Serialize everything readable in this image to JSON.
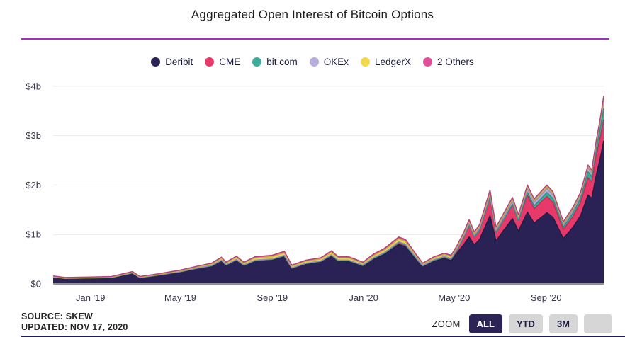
{
  "title": "Aggregated Open Interest of Bitcoin Options",
  "accent_divider_color": "#a62cc6",
  "chart_data": {
    "type": "area",
    "stacked": true,
    "unit": "USD billions",
    "x": [
      "2018-11-12",
      "2018-11-28",
      "2019-01-01",
      "2019-01-29",
      "2019-02-26",
      "2019-03-08",
      "2019-03-31",
      "2019-05-01",
      "2019-05-24",
      "2019-06-12",
      "2019-06-25",
      "2019-07-01",
      "2019-07-15",
      "2019-07-25",
      "2019-08-09",
      "2019-09-01",
      "2019-09-17",
      "2019-09-27",
      "2019-10-16",
      "2019-11-05",
      "2019-11-19",
      "2019-11-28",
      "2019-12-12",
      "2019-12-31",
      "2020-01-14",
      "2020-01-29",
      "2020-02-17",
      "2020-02-26",
      "2020-03-11",
      "2020-03-20",
      "2020-04-04",
      "2020-04-18",
      "2020-04-27",
      "2020-05-05",
      "2020-05-14",
      "2020-05-21",
      "2020-05-28",
      "2020-06-04",
      "2020-06-18",
      "2020-06-26",
      "2020-07-07",
      "2020-07-18",
      "2020-07-26",
      "2020-08-07",
      "2020-08-16",
      "2020-09-02",
      "2020-09-10",
      "2020-09-24",
      "2020-10-07",
      "2020-10-17",
      "2020-10-27",
      "2020-11-01",
      "2020-11-07",
      "2020-11-12",
      "2020-11-17"
    ],
    "series": [
      {
        "name": "Deribit",
        "color": "#2a2255",
        "values": [
          0.135,
          0.108,
          0.118,
          0.126,
          0.215,
          0.124,
          0.17,
          0.24,
          0.31,
          0.36,
          0.465,
          0.375,
          0.48,
          0.37,
          0.465,
          0.49,
          0.56,
          0.315,
          0.405,
          0.45,
          0.57,
          0.465,
          0.462,
          0.365,
          0.5,
          0.6,
          0.8,
          0.755,
          0.5,
          0.35,
          0.46,
          0.515,
          0.47,
          0.63,
          0.8,
          0.95,
          0.79,
          0.9,
          1.38,
          0.87,
          1.1,
          1.32,
          1.07,
          1.45,
          1.23,
          1.44,
          1.35,
          0.92,
          1.15,
          1.38,
          1.8,
          1.73,
          2.2,
          2.52,
          2.9
        ]
      },
      {
        "name": "CME",
        "color": "#e83a6a",
        "values": [
          0.002,
          0.002,
          0.002,
          0.003,
          0.004,
          0.003,
          0.004,
          0.005,
          0.006,
          0.007,
          0.008,
          0.007,
          0.008,
          0.007,
          0.008,
          0.008,
          0.009,
          0.006,
          0.007,
          0.008,
          0.01,
          0.008,
          0.009,
          0.008,
          0.015,
          0.022,
          0.035,
          0.032,
          0.02,
          0.012,
          0.018,
          0.025,
          0.028,
          0.06,
          0.15,
          0.24,
          0.16,
          0.19,
          0.37,
          0.17,
          0.22,
          0.29,
          0.21,
          0.34,
          0.29,
          0.33,
          0.3,
          0.18,
          0.22,
          0.27,
          0.35,
          0.33,
          0.39,
          0.42,
          0.43
        ]
      },
      {
        "name": "bit.com",
        "color": "#3dab9b",
        "values": [
          0,
          0,
          0,
          0,
          0,
          0,
          0,
          0,
          0,
          0,
          0,
          0,
          0,
          0,
          0,
          0,
          0,
          0,
          0,
          0,
          0,
          0,
          0,
          0,
          0,
          0,
          0,
          0,
          0,
          0,
          0,
          0,
          0,
          0,
          0,
          0,
          0,
          0,
          0,
          0,
          0,
          0,
          0,
          0.06,
          0.06,
          0.08,
          0.08,
          0.05,
          0.07,
          0.08,
          0.12,
          0.11,
          0.15,
          0.18,
          0.22
        ]
      },
      {
        "name": "OKEx",
        "color": "#b7aede",
        "values": [
          0.005,
          0.005,
          0.005,
          0.005,
          0.006,
          0.005,
          0.005,
          0.006,
          0.006,
          0.007,
          0.008,
          0.007,
          0.008,
          0.007,
          0.008,
          0.008,
          0.009,
          0.006,
          0.007,
          0.008,
          0.01,
          0.009,
          0.01,
          0.01,
          0.012,
          0.014,
          0.018,
          0.018,
          0.014,
          0.012,
          0.014,
          0.016,
          0.016,
          0.022,
          0.028,
          0.035,
          0.03,
          0.04,
          0.06,
          0.045,
          0.06,
          0.07,
          0.055,
          0.08,
          0.07,
          0.08,
          0.075,
          0.055,
          0.06,
          0.07,
          0.08,
          0.08,
          0.1,
          0.12,
          0.15
        ]
      },
      {
        "name": "LedgerX",
        "color": "#f1d94f",
        "values": [
          0.004,
          0.004,
          0.004,
          0.004,
          0.008,
          0.006,
          0.008,
          0.012,
          0.02,
          0.028,
          0.035,
          0.032,
          0.04,
          0.034,
          0.042,
          0.046,
          0.05,
          0.03,
          0.036,
          0.038,
          0.048,
          0.042,
          0.042,
          0.032,
          0.042,
          0.05,
          0.058,
          0.056,
          0.04,
          0.026,
          0.034,
          0.038,
          0.036,
          0.038,
          0.04,
          0.042,
          0.038,
          0.04,
          0.045,
          0.035,
          0.035,
          0.035,
          0.03,
          0.035,
          0.03,
          0.035,
          0.03,
          0.025,
          0.025,
          0.025,
          0.025,
          0.025,
          0.03,
          0.035,
          0.045
        ]
      },
      {
        "name": "2 Others",
        "color": "#df4f9a",
        "values": [
          0.014,
          0.011,
          0.011,
          0.012,
          0.017,
          0.012,
          0.013,
          0.017,
          0.018,
          0.018,
          0.024,
          0.019,
          0.024,
          0.022,
          0.027,
          0.028,
          0.032,
          0.023,
          0.025,
          0.026,
          0.032,
          0.026,
          0.027,
          0.025,
          0.031,
          0.034,
          0.039,
          0.039,
          0.026,
          0.02,
          0.024,
          0.026,
          0.03,
          0.03,
          0.032,
          0.033,
          0.032,
          0.03,
          0.045,
          0.03,
          0.035,
          0.035,
          0.035,
          0.035,
          0.04,
          0.035,
          0.035,
          0.03,
          0.03,
          0.03,
          0.03,
          0.03,
          0.035,
          0.04,
          0.06
        ]
      }
    ],
    "yticks": [
      0,
      1,
      2,
      3,
      4
    ],
    "ytick_labels": [
      "$0",
      "$1b",
      "$2b",
      "$3b",
      "$4b"
    ],
    "ylim": [
      0,
      4.2
    ],
    "xticks": [
      {
        "label": "Jan '19",
        "date": "2019-01-01"
      },
      {
        "label": "May '19",
        "date": "2019-05-01"
      },
      {
        "label": "Sep '19",
        "date": "2019-09-01"
      },
      {
        "label": "Jan '20",
        "date": "2020-01-01"
      },
      {
        "label": "May '20",
        "date": "2020-05-01"
      },
      {
        "label": "Sep '20",
        "date": "2020-09-01"
      }
    ],
    "grid": true,
    "legend_position": "top"
  },
  "source": {
    "line1": "SOURCE: SKEW",
    "line2": "UPDATED: NOV 17, 2020"
  },
  "zoom_controls": {
    "label": "ZOOM",
    "buttons": [
      {
        "label": "ALL",
        "active": true
      },
      {
        "label": "YTD",
        "active": false
      },
      {
        "label": "3M",
        "active": false
      },
      {
        "label": "",
        "active": false
      }
    ]
  },
  "colors": {
    "active_button_bg": "#2b2455",
    "inactive_button_bg": "#d6d6d6",
    "axis_line": "#90909e",
    "gridline": "#e9e9ec"
  }
}
